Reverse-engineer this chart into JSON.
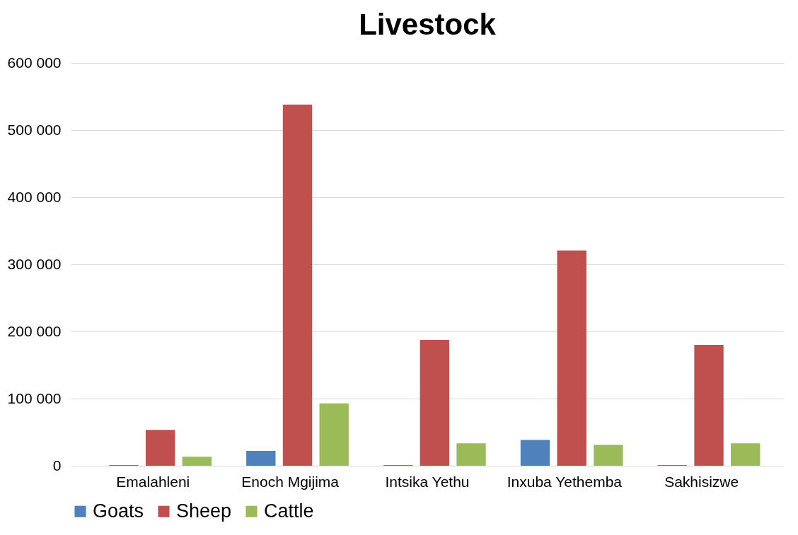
{
  "chart_data": {
    "type": "bar",
    "title": "Livestock",
    "categories": [
      "Emalahleni",
      "Enoch Mgijima",
      "Intsika Yethu",
      "Inxuba Yethemba",
      "Sakhisizwe"
    ],
    "series": [
      {
        "name": "Goats",
        "color": "#4f81bd",
        "values": [
          1000,
          22000,
          1000,
          38500,
          1000
        ]
      },
      {
        "name": "Sheep",
        "color": "#c0504d",
        "values": [
          53500,
          538000,
          187500,
          320500,
          180000
        ]
      },
      {
        "name": "Cattle",
        "color": "#9bbb59",
        "values": [
          13500,
          93000,
          33500,
          31000,
          33500
        ]
      }
    ],
    "ylim": [
      0,
      600000
    ],
    "yticks": [
      {
        "value": 0,
        "label": "0"
      },
      {
        "value": 100000,
        "label": "100 000"
      },
      {
        "value": 200000,
        "label": "200 000"
      },
      {
        "value": 300000,
        "label": "300 000"
      },
      {
        "value": 400000,
        "label": "400 000"
      },
      {
        "value": 500000,
        "label": "500 000"
      },
      {
        "value": 600000,
        "label": "600 000"
      }
    ],
    "grid": "y",
    "legend": "bottom"
  }
}
